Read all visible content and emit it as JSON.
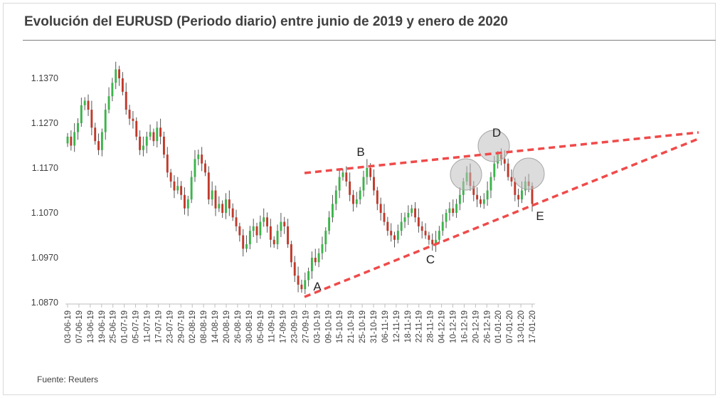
{
  "title": "Evolución del EURUSD (Periodo diario) entre junio de 2019 y enero de 2020",
  "source": "Fuente: Reuters",
  "colors": {
    "up": "#3cb44b",
    "down": "#c0392b",
    "trendline": "#f04a4a",
    "circle": "#bfbfbf"
  },
  "chart_data": {
    "type": "candlestick",
    "title": "Evolución del EURUSD (Periodo diario) entre junio de 2019 y enero de 2020",
    "ylim": [
      1.087,
      1.143
    ],
    "yticks": [
      "1.1370",
      "1.1270",
      "1.1170",
      "1.1070",
      "1.0970",
      "1.0870"
    ],
    "xticks": [
      "03-06-19",
      "07-06-19",
      "13-06-19",
      "19-06-19",
      "25-06-19",
      "01-07-19",
      "05-07-19",
      "11-07-19",
      "17-07-19",
      "23-07-19",
      "29-07-19",
      "02-08-19",
      "08-08-19",
      "14-08-19",
      "20-08-19",
      "26-08-19",
      "30-08-19",
      "05-09-19",
      "11-09-19",
      "17-09-19",
      "23-09-19",
      "27-09-19",
      "03-10-19",
      "09-10-19",
      "15-10-19",
      "21-10-19",
      "25-10-19",
      "31-10-19",
      "06-11-19",
      "12-11-19",
      "18-11-19",
      "22-11-19",
      "28-11-19",
      "04-12-19",
      "10-12-19",
      "16-12-19",
      "20-12-19",
      "26-12-19",
      "01-01-20",
      "07-01-20",
      "13-01-20",
      "17-01-20"
    ],
    "closes": [
      1.124,
      1.122,
      1.125,
      1.127,
      1.131,
      1.132,
      1.13,
      1.126,
      1.123,
      1.121,
      1.125,
      1.13,
      1.133,
      1.136,
      1.139,
      1.137,
      1.134,
      1.13,
      1.128,
      1.1275,
      1.124,
      1.121,
      1.122,
      1.124,
      1.125,
      1.123,
      1.126,
      1.124,
      1.12,
      1.116,
      1.114,
      1.112,
      1.113,
      1.111,
      1.108,
      1.11,
      1.115,
      1.119,
      1.12,
      1.118,
      1.116,
      1.11,
      1.112,
      1.108,
      1.109,
      1.107,
      1.11,
      1.108,
      1.106,
      1.104,
      1.102,
      1.099,
      1.1,
      1.103,
      1.104,
      1.102,
      1.105,
      1.106,
      1.104,
      1.101,
      1.1,
      1.103,
      1.105,
      1.104,
      1.1,
      1.096,
      1.093,
      1.091,
      1.09,
      1.092,
      1.094,
      1.097,
      1.096,
      1.098,
      1.1,
      1.103,
      1.106,
      1.109,
      1.112,
      1.115,
      1.116,
      1.114,
      1.111,
      1.109,
      1.11,
      1.112,
      1.115,
      1.117,
      1.115,
      1.112,
      1.109,
      1.107,
      1.105,
      1.103,
      1.102,
      1.101,
      1.103,
      1.105,
      1.106,
      1.107,
      1.108,
      1.106,
      1.104,
      1.103,
      1.102,
      1.101,
      1.1,
      1.101,
      1.103,
      1.105,
      1.107,
      1.108,
      1.107,
      1.109,
      1.111,
      1.114,
      1.116,
      1.113,
      1.111,
      1.11,
      1.109,
      1.11,
      1.112,
      1.115,
      1.118,
      1.12,
      1.119,
      1.118,
      1.115,
      1.114,
      1.111,
      1.11,
      1.112,
      1.114,
      1.113,
      1.109
    ],
    "annotations": [
      {
        "label": "A",
        "x": "30-09-19",
        "y": 1.0885
      },
      {
        "label": "B",
        "x": "21-10-19",
        "y": 1.118
      },
      {
        "label": "C",
        "x": "29-11-19",
        "y": 1.1
      },
      {
        "label": "D",
        "x": "31-12-19",
        "y": 1.122
      },
      {
        "label": "E",
        "x": "17-01-20",
        "y": 1.1095
      }
    ],
    "grid": false,
    "legend": "none"
  }
}
